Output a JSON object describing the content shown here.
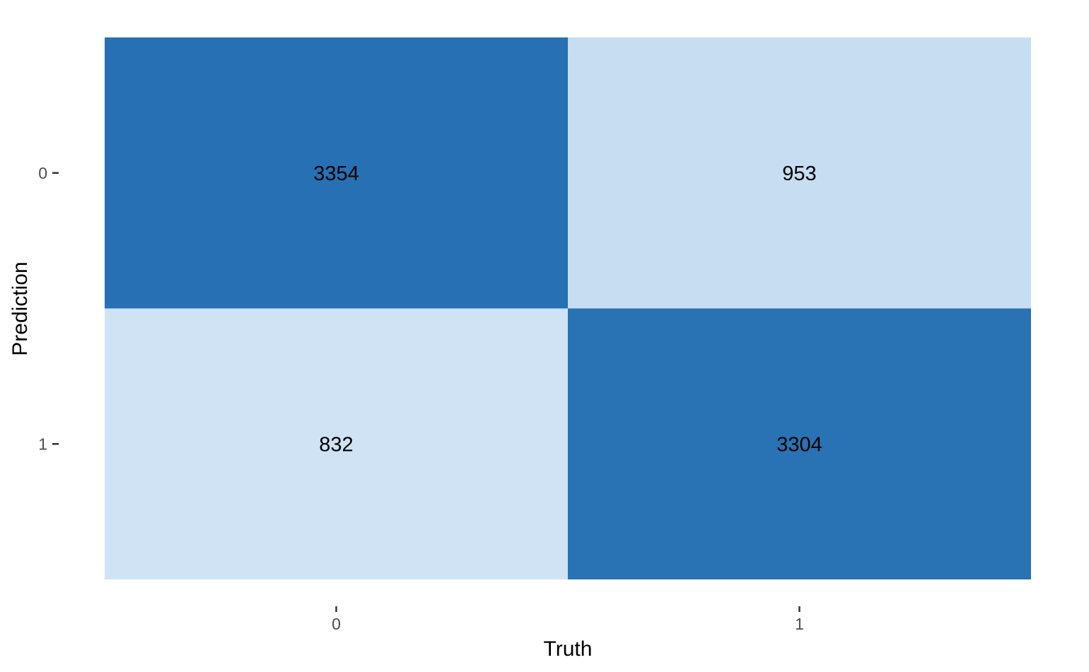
{
  "chart_data": {
    "type": "heatmap",
    "xlabel": "Truth",
    "ylabel": "Prediction",
    "x_categories": [
      "0",
      "1"
    ],
    "y_categories": [
      "0",
      "1"
    ],
    "cells": [
      {
        "truth": "0",
        "prediction": "0",
        "value": 3354,
        "label": "3354"
      },
      {
        "truth": "1",
        "prediction": "0",
        "value": 953,
        "label": "953"
      },
      {
        "truth": "0",
        "prediction": "1",
        "value": 832,
        "label": "832"
      },
      {
        "truth": "1",
        "prediction": "1",
        "value": 3304,
        "label": "3304"
      }
    ],
    "color_low": "#cfe3f5",
    "color_high": "#2670b3",
    "grid": false,
    "legend": "none"
  }
}
